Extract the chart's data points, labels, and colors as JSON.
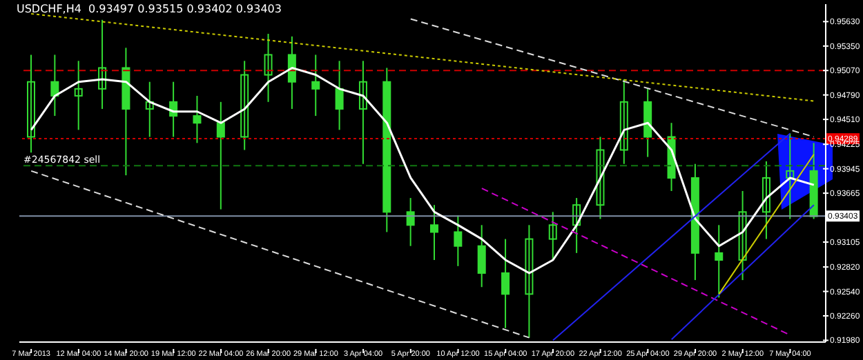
{
  "chart_data": {
    "type": "candlestick",
    "title": "USDCHF,H4  0.93497 0.93515 0.93402 0.93403",
    "color": "#33dd33",
    "categories": [
      "7 Mar 2013",
      null,
      "12 Mar 04:00",
      null,
      "14 Mar 20:00",
      null,
      "19 Mar 12:00",
      null,
      "22 Mar 04:00",
      null,
      "26 Mar 20:00",
      null,
      "29 Mar 12:00",
      null,
      "3 Apr 04:00",
      null,
      "5 Apr 20:00",
      null,
      "10 Apr 12:00",
      null,
      "15 Apr 04:00",
      null,
      "17 Apr 20:00",
      null,
      "22 Apr 12:00",
      null,
      "25 Apr 04:00",
      null,
      "29 Apr 20:00",
      null,
      "2 May 12:00",
      null,
      "7 May 04:00",
      null
    ],
    "ohlc": [
      [
        0.9431,
        0.9525,
        0.9413,
        0.9494
      ],
      [
        0.9494,
        0.9525,
        0.9455,
        0.9478
      ],
      [
        0.9478,
        0.9518,
        0.9439,
        0.9486
      ],
      [
        0.9486,
        0.9565,
        0.9463,
        0.951
      ],
      [
        0.951,
        0.9533,
        0.9387,
        0.9463
      ],
      [
        0.9463,
        0.9494,
        0.9431,
        0.9471
      ],
      [
        0.9471,
        0.9494,
        0.9431,
        0.9455
      ],
      [
        0.9455,
        0.9478,
        0.9424,
        0.9447
      ],
      [
        0.9447,
        0.9471,
        0.9348,
        0.9431
      ],
      [
        0.9431,
        0.9518,
        0.9416,
        0.9502
      ],
      [
        0.9502,
        0.9549,
        0.9471,
        0.9525
      ],
      [
        0.9525,
        0.9546,
        0.9463,
        0.9494
      ],
      [
        0.9494,
        0.9525,
        0.9455,
        0.9486
      ],
      [
        0.9486,
        0.9518,
        0.9439,
        0.9463
      ],
      [
        0.9463,
        0.9518,
        0.94,
        0.9494
      ],
      [
        0.9494,
        0.951,
        0.9322,
        0.9345
      ],
      [
        0.9345,
        0.9361,
        0.9306,
        0.933
      ],
      [
        0.933,
        0.9353,
        0.929,
        0.9322
      ],
      [
        0.9322,
        0.9341,
        0.9283,
        0.9306
      ],
      [
        0.9306,
        0.933,
        0.9259,
        0.9275
      ],
      [
        0.9275,
        0.9314,
        0.9212,
        0.9251
      ],
      [
        0.9251,
        0.933,
        0.9201,
        0.9314
      ],
      [
        0.9314,
        0.9345,
        0.929,
        0.933
      ],
      [
        0.933,
        0.9361,
        0.9298,
        0.9353
      ],
      [
        0.9353,
        0.9431,
        0.9337,
        0.9416
      ],
      [
        0.9416,
        0.9497,
        0.94,
        0.9471
      ],
      [
        0.9471,
        0.9486,
        0.9408,
        0.9431
      ],
      [
        0.9431,
        0.9447,
        0.9369,
        0.9384
      ],
      [
        0.9384,
        0.94,
        0.9267,
        0.9298
      ],
      [
        0.9298,
        0.933,
        0.9247,
        0.929
      ],
      [
        0.929,
        0.9369,
        0.9267,
        0.9345
      ],
      [
        0.9345,
        0.9403,
        0.9314,
        0.9384
      ],
      [
        0.9384,
        0.9435,
        0.9337,
        0.9392
      ],
      [
        0.9392,
        0.9424,
        0.9337,
        0.934
      ]
    ],
    "series": [
      {
        "type": "line",
        "color": "#ffffff",
        "line_style": "solid",
        "values": [
          0.9439,
          0.9478,
          0.9494,
          0.9497,
          0.9494,
          0.9471,
          0.946,
          0.946,
          0.9447,
          0.9463,
          0.9494,
          0.951,
          0.9502,
          0.9486,
          0.9478,
          0.9447,
          0.9384,
          0.9345,
          0.933,
          0.9314,
          0.929,
          0.9275,
          0.929,
          0.933,
          0.9384,
          0.9439,
          0.9447,
          0.9416,
          0.9337,
          0.9306,
          0.9322,
          0.9361,
          0.9384,
          0.9376
        ]
      },
      {
        "type": "line",
        "color": "#dddddd",
        "line_style": "dashed",
        "values": [
          null,
          null,
          null,
          null,
          null,
          null,
          null,
          null,
          null,
          null,
          null,
          null,
          null,
          null,
          null,
          null,
          0.9566,
          null,
          null,
          null,
          null,
          null,
          null,
          null,
          null,
          null,
          null,
          null,
          null,
          null,
          null,
          null,
          null,
          0.9431
        ]
      },
      {
        "type": "line",
        "color": "#dddddd",
        "line_style": "dashed",
        "values": [
          0.9392,
          null,
          null,
          null,
          null,
          null,
          null,
          null,
          null,
          null,
          null,
          null,
          null,
          null,
          null,
          null,
          null,
          null,
          null,
          null,
          null,
          0.9201,
          null,
          null,
          null,
          null,
          null,
          null,
          null,
          null,
          null,
          null,
          null,
          null
        ]
      },
      {
        "type": "line",
        "color": "#cccc00",
        "line_style": "dotted",
        "values": [
          0.9572,
          null,
          null,
          null,
          null,
          null,
          null,
          null,
          null,
          null,
          null,
          null,
          null,
          null,
          null,
          null,
          null,
          null,
          null,
          null,
          null,
          null,
          null,
          null,
          null,
          null,
          null,
          null,
          null,
          null,
          null,
          null,
          null,
          0.9472
        ]
      },
      {
        "type": "line",
        "color": "#cc00cc",
        "line_style": "dashed",
        "values": [
          null,
          null,
          null,
          null,
          null,
          null,
          null,
          null,
          null,
          null,
          null,
          null,
          null,
          null,
          null,
          null,
          null,
          null,
          null,
          0.9372,
          null,
          null,
          null,
          null,
          null,
          null,
          null,
          null,
          null,
          null,
          null,
          null,
          0.9204,
          null
        ]
      },
      {
        "type": "line",
        "color": "#2222ee",
        "line_style": "solid",
        "values": [
          null,
          null,
          null,
          null,
          null,
          null,
          null,
          null,
          null,
          null,
          null,
          null,
          null,
          null,
          null,
          null,
          null,
          null,
          null,
          null,
          null,
          null,
          0.9198,
          null,
          null,
          null,
          null,
          null,
          null,
          null,
          null,
          null,
          0.9435,
          null
        ]
      },
      {
        "type": "line",
        "color": "#2222ee",
        "line_style": "solid",
        "values": [
          null,
          null,
          null,
          null,
          null,
          null,
          null,
          null,
          null,
          null,
          null,
          null,
          null,
          null,
          null,
          null,
          null,
          null,
          null,
          null,
          null,
          null,
          null,
          null,
          null,
          null,
          null,
          0.9199,
          null,
          null,
          null,
          null,
          null,
          0.9353
        ]
      },
      {
        "type": "line",
        "color": "#cccc00",
        "line_style": "solid",
        "values": [
          null,
          null,
          null,
          null,
          null,
          null,
          null,
          null,
          null,
          null,
          null,
          null,
          null,
          null,
          null,
          null,
          null,
          null,
          null,
          null,
          null,
          null,
          null,
          null,
          null,
          null,
          null,
          null,
          null,
          0.9251,
          null,
          null,
          null,
          0.9411
        ]
      }
    ],
    "ylim": [
      0.9196,
      0.9583
    ],
    "yticks": [
      {
        "value": 0.9563,
        "label": "0.95630"
      },
      {
        "value": 0.9535,
        "label": "0.95350"
      },
      {
        "value": 0.9507,
        "label": "0.95070"
      },
      {
        "value": 0.9479,
        "label": "0.94790"
      },
      {
        "value": 0.9451,
        "label": "0.94510"
      },
      {
        "value": 0.94225,
        "label": "0.94225"
      },
      {
        "value": 0.93945,
        "label": "0.93945"
      },
      {
        "value": 0.93665,
        "label": "0.93665"
      },
      {
        "value": 0.93105,
        "label": "0.93105"
      },
      {
        "value": 0.9282,
        "label": "0.92820"
      },
      {
        "value": 0.9254,
        "label": "0.92540"
      },
      {
        "value": 0.9226,
        "label": "0.92260"
      },
      {
        "value": 0.9198,
        "label": "0.91980"
      }
    ],
    "ref_lines": [
      {
        "axis": "y",
        "value": 0.9507,
        "label": null,
        "color": "#cc0000",
        "line_style": "dashed"
      },
      {
        "axis": "y",
        "value": 0.94289,
        "label": "0.94289",
        "color": "#cc0000",
        "line_style": "dotted"
      },
      {
        "axis": "y",
        "value": 0.9398,
        "label": "#24567842 sell",
        "color": "#117711",
        "line_style": "dashed"
      },
      {
        "axis": "y",
        "value": 0.93403,
        "label": "0.93403",
        "color": "#8090a8",
        "line_style": "solid"
      }
    ],
    "grid": false
  }
}
